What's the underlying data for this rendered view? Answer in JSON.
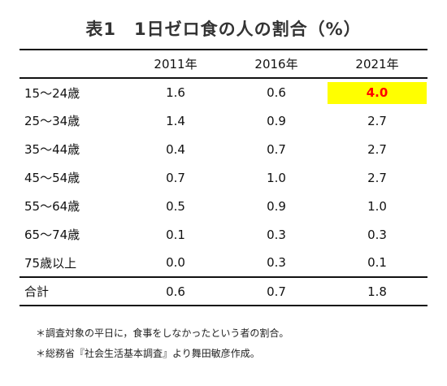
{
  "title": "表1　1日ゼロ食の人の割合（%）",
  "table": {
    "headers": [
      "",
      "2011年",
      "2016年",
      "2021年"
    ],
    "rows": [
      {
        "label": "15～24歳",
        "values": [
          "1.6",
          "0.6",
          "4.0"
        ]
      },
      {
        "label": "25～34歳",
        "values": [
          "1.4",
          "0.9",
          "2.7"
        ]
      },
      {
        "label": "35～44歳",
        "values": [
          "0.4",
          "0.7",
          "2.7"
        ]
      },
      {
        "label": "45～54歳",
        "values": [
          "0.7",
          "1.0",
          "2.7"
        ]
      },
      {
        "label": "55～64歳",
        "values": [
          "0.5",
          "0.9",
          "1.0"
        ]
      },
      {
        "label": "65～74歳",
        "values": [
          "0.1",
          "0.3",
          "0.3"
        ]
      },
      {
        "label": "75歳以上",
        "values": [
          "0.0",
          "0.3",
          "0.1"
        ]
      }
    ],
    "total": {
      "label": "合計",
      "values": [
        "0.6",
        "0.7",
        "1.8"
      ]
    },
    "highlight_color": "#ffff00",
    "highlight_text_color": "#ff0000"
  },
  "notes": [
    "＊調査対象の平日に，食事をしなかったという者の割合。",
    "＊総務省『社会生活基本調査』より舞田敏彦作成。"
  ]
}
